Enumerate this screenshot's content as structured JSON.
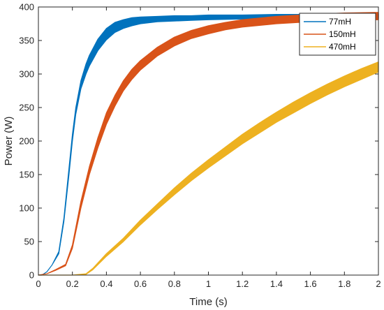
{
  "chart_data": {
    "type": "line",
    "title": "",
    "xlabel": "Time (s)",
    "ylabel": "Power (W)",
    "xlim": [
      0,
      2
    ],
    "ylim": [
      0,
      400
    ],
    "x_ticks": [
      0,
      0.2,
      0.4,
      0.6,
      0.8,
      1,
      1.2,
      1.4,
      1.6,
      1.8,
      2
    ],
    "x_tick_labels": [
      "0",
      "0.2",
      "0.4",
      "0.6",
      "0.8",
      "1",
      "1.2",
      "1.4",
      "1.6",
      "1.8",
      "2"
    ],
    "y_ticks": [
      0,
      50,
      100,
      150,
      200,
      250,
      300,
      350,
      400
    ],
    "y_tick_labels": [
      "0",
      "50",
      "100",
      "150",
      "200",
      "250",
      "300",
      "350",
      "400"
    ],
    "grid": false,
    "legend_position": "top-right",
    "series": [
      {
        "name": "77mH",
        "color": "#0072BD",
        "x": [
          0,
          0.02,
          0.05,
          0.08,
          0.12,
          0.15,
          0.18,
          0.2,
          0.22,
          0.25,
          0.28,
          0.3,
          0.35,
          0.4,
          0.45,
          0.5,
          0.55,
          0.6,
          0.7,
          0.8,
          0.9,
          1.0,
          1.2,
          1.4,
          1.6,
          1.8,
          2.0
        ],
        "lower": [
          0,
          0,
          5,
          15,
          32,
          80,
          150,
          200,
          240,
          278,
          300,
          312,
          335,
          351,
          362,
          368,
          372,
          375,
          378,
          379,
          380,
          381,
          382,
          383,
          383,
          383,
          383
        ],
        "upper": [
          0,
          0,
          5,
          15,
          35,
          85,
          160,
          210,
          250,
          290,
          315,
          328,
          352,
          368,
          377,
          381,
          384,
          385,
          386,
          387,
          387,
          388,
          388,
          389,
          389,
          390,
          390
        ]
      },
      {
        "name": "150mH",
        "color": "#D95319",
        "x": [
          0,
          0.05,
          0.1,
          0.16,
          0.2,
          0.25,
          0.3,
          0.35,
          0.4,
          0.45,
          0.5,
          0.55,
          0.6,
          0.7,
          0.8,
          0.9,
          1.0,
          1.1,
          1.2,
          1.4,
          1.6,
          1.8,
          2.0
        ],
        "lower": [
          0,
          2,
          7,
          14,
          40,
          100,
          150,
          190,
          225,
          252,
          275,
          292,
          306,
          327,
          342,
          353,
          360,
          366,
          370,
          375,
          378,
          380,
          381
        ],
        "upper": [
          0,
          2,
          8,
          16,
          45,
          110,
          162,
          205,
          242,
          268,
          290,
          307,
          320,
          340,
          355,
          365,
          372,
          377,
          381,
          386,
          389,
          391,
          392
        ]
      },
      {
        "name": "470mH",
        "color": "#EDB120",
        "x": [
          0,
          0.1,
          0.2,
          0.28,
          0.32,
          0.4,
          0.5,
          0.6,
          0.7,
          0.8,
          0.9,
          1.0,
          1.1,
          1.2,
          1.3,
          1.4,
          1.5,
          1.6,
          1.7,
          1.8,
          1.9,
          2.0
        ],
        "lower": [
          0,
          0,
          0,
          1,
          8,
          28,
          50,
          75,
          98,
          120,
          141,
          160,
          178,
          196,
          212,
          228,
          242,
          256,
          269,
          281,
          292,
          303
        ],
        "upper": [
          0,
          0,
          0,
          2,
          10,
          32,
          55,
          82,
          106,
          130,
          152,
          172,
          191,
          210,
          227,
          243,
          258,
          272,
          285,
          297,
          308,
          318
        ]
      }
    ]
  }
}
